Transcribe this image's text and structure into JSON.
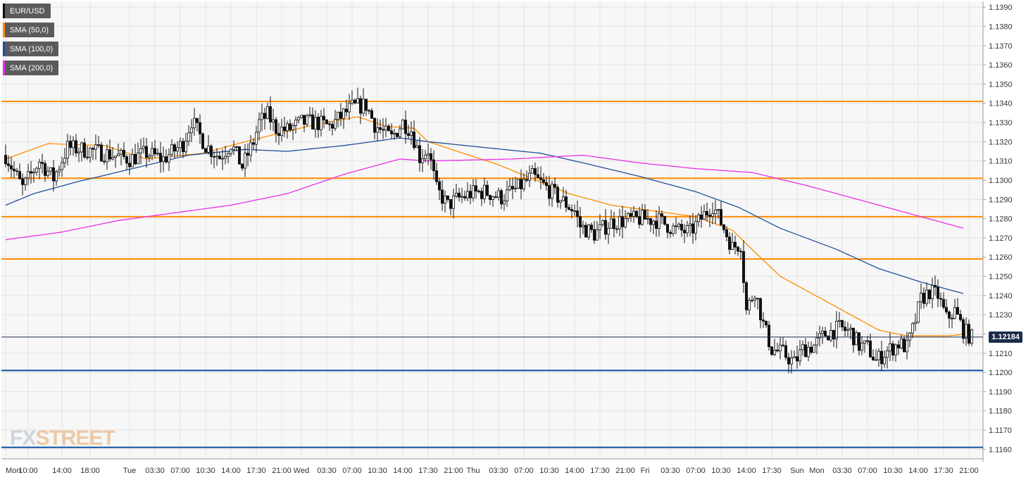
{
  "chart_data": {
    "type": "candlestick",
    "symbol": "EUR/USD",
    "ylim": [
      1.1155,
      1.1393
    ],
    "y_ticks": [
      "1.1390",
      "1.1380",
      "1.1370",
      "1.1360",
      "1.1350",
      "1.1340",
      "1.1330",
      "1.1320",
      "1.1310",
      "1.1300",
      "1.1290",
      "1.1280",
      "1.1270",
      "1.1260",
      "1.1250",
      "1.1240",
      "1.1230",
      "1.1220",
      "1.1210",
      "1.1200",
      "1.1190",
      "1.1180",
      "1.1170",
      "1.1160"
    ],
    "x_ticks": [
      "Mon",
      "10:00",
      "14:00",
      "18:00",
      "Tue",
      "03:30",
      "07:00",
      "10:30",
      "14:00",
      "17:30",
      "21:00",
      "Wed",
      "03:30",
      "07:00",
      "10:30",
      "14:00",
      "17:30",
      "21:00",
      "Thu",
      "03:30",
      "07:00",
      "10:30",
      "14:00",
      "17:30",
      "21:00",
      "Fri",
      "03:30",
      "07:00",
      "10:30",
      "14:00",
      "17:30",
      "Sun",
      "Mon",
      "03:30",
      "07:00",
      "10:30",
      "14:00",
      "17:30",
      "21:00"
    ],
    "x_tick_index": [
      0,
      8,
      20,
      30,
      44,
      53,
      62,
      71,
      80,
      89,
      98,
      105,
      114,
      123,
      132,
      141,
      150,
      159,
      166,
      175,
      184,
      193,
      202,
      211,
      220,
      227,
      236,
      245,
      254,
      263,
      272,
      281,
      288,
      297,
      306,
      315,
      324,
      333,
      342
    ],
    "last_price": "1.12184",
    "grid": true,
    "levels": [
      {
        "value": 1.1341,
        "color": "#ff8c00"
      },
      {
        "value": 1.1301,
        "color": "#ff8c00"
      },
      {
        "value": 1.1281,
        "color": "#ff8c00"
      },
      {
        "value": 1.1259,
        "color": "#ff8c00"
      },
      {
        "value": 1.1201,
        "color": "#0a4fa0"
      },
      {
        "value": 1.1161,
        "color": "#0a4fa0"
      }
    ],
    "series": [
      {
        "name": "SMA (50,0)",
        "color": "#ff8c00",
        "points": [
          [
            0,
            1.1311
          ],
          [
            15,
            1.1319
          ],
          [
            35,
            1.1318
          ],
          [
            50,
            1.1311
          ],
          [
            70,
            1.1314
          ],
          [
            85,
            1.132
          ],
          [
            110,
            1.1329
          ],
          [
            125,
            1.1333
          ],
          [
            135,
            1.1328
          ],
          [
            145,
            1.1327
          ],
          [
            150,
            1.132
          ],
          [
            175,
            1.1308
          ],
          [
            200,
            1.1293
          ],
          [
            215,
            1.1287
          ],
          [
            230,
            1.1284
          ],
          [
            245,
            1.1281
          ],
          [
            258,
            1.1274
          ],
          [
            265,
            1.1264
          ],
          [
            275,
            1.125
          ],
          [
            295,
            1.1234
          ],
          [
            310,
            1.1222
          ],
          [
            320,
            1.1219
          ],
          [
            335,
            1.1219
          ],
          [
            341,
            1.122
          ]
        ]
      },
      {
        "name": "SMA (100,0)",
        "color": "#1f4f9c",
        "points": [
          [
            0,
            1.1287
          ],
          [
            10,
            1.1293
          ],
          [
            25,
            1.1299
          ],
          [
            45,
            1.1306
          ],
          [
            65,
            1.1313
          ],
          [
            85,
            1.1316
          ],
          [
            100,
            1.1315
          ],
          [
            120,
            1.1318
          ],
          [
            140,
            1.1322
          ],
          [
            150,
            1.132
          ],
          [
            170,
            1.1317
          ],
          [
            190,
            1.1314
          ],
          [
            205,
            1.1309
          ],
          [
            225,
            1.1302
          ],
          [
            245,
            1.1294
          ],
          [
            260,
            1.1286
          ],
          [
            275,
            1.1275
          ],
          [
            295,
            1.1264
          ],
          [
            310,
            1.1254
          ],
          [
            325,
            1.1247
          ],
          [
            340,
            1.1241
          ]
        ]
      },
      {
        "name": "SMA (200,0)",
        "color": "#e830e8",
        "points": [
          [
            0,
            1.1269
          ],
          [
            20,
            1.1273
          ],
          [
            40,
            1.1279
          ],
          [
            60,
            1.1283
          ],
          [
            80,
            1.1287
          ],
          [
            100,
            1.1293
          ],
          [
            120,
            1.1303
          ],
          [
            140,
            1.1311
          ],
          [
            150,
            1.131
          ],
          [
            180,
            1.1311
          ],
          [
            205,
            1.1313
          ],
          [
            225,
            1.1309
          ],
          [
            245,
            1.1306
          ],
          [
            265,
            1.1304
          ],
          [
            285,
            1.1297
          ],
          [
            305,
            1.1289
          ],
          [
            325,
            1.1281
          ],
          [
            340,
            1.1275
          ]
        ]
      }
    ],
    "price_path": [
      [
        0,
        1.1313
      ],
      [
        6,
        1.1296
      ],
      [
        12,
        1.131
      ],
      [
        17,
        1.1301
      ],
      [
        22,
        1.1317
      ],
      [
        32,
        1.1315
      ],
      [
        44,
        1.1311
      ],
      [
        50,
        1.1314
      ],
      [
        56,
        1.1311
      ],
      [
        63,
        1.1319
      ],
      [
        66,
        1.1331
      ],
      [
        71,
        1.1318
      ],
      [
        76,
        1.1312
      ],
      [
        80,
        1.1319
      ],
      [
        84,
        1.1307
      ],
      [
        88,
        1.132
      ],
      [
        90,
        1.133
      ],
      [
        93,
        1.1334
      ],
      [
        96,
        1.1327
      ],
      [
        100,
        1.1326
      ],
      [
        105,
        1.133
      ],
      [
        110,
        1.133
      ],
      [
        115,
        1.1328
      ],
      [
        123,
        1.1338
      ],
      [
        128,
        1.1339
      ],
      [
        131,
        1.1329
      ],
      [
        134,
        1.1325
      ],
      [
        137,
        1.1322
      ],
      [
        141,
        1.133
      ],
      [
        144,
        1.1326
      ],
      [
        147,
        1.1312
      ],
      [
        150,
        1.1316
      ],
      [
        153,
        1.1295
      ],
      [
        157,
        1.1287
      ],
      [
        160,
        1.129
      ],
      [
        165,
        1.1293
      ],
      [
        170,
        1.1294
      ],
      [
        176,
        1.1291
      ],
      [
        182,
        1.1296
      ],
      [
        187,
        1.1302
      ],
      [
        192,
        1.1296
      ],
      [
        197,
        1.129
      ],
      [
        202,
        1.1284
      ],
      [
        204,
        1.1276
      ],
      [
        209,
        1.1272
      ],
      [
        215,
        1.1278
      ],
      [
        220,
        1.1279
      ],
      [
        226,
        1.128
      ],
      [
        232,
        1.1279
      ],
      [
        238,
        1.1274
      ],
      [
        243,
        1.1273
      ],
      [
        248,
        1.1282
      ],
      [
        251,
        1.1287
      ],
      [
        255,
        1.1275
      ],
      [
        258,
        1.1265
      ],
      [
        261,
        1.1267
      ],
      [
        263,
        1.1232
      ],
      [
        266,
        1.1243
      ],
      [
        269,
        1.1225
      ],
      [
        272,
        1.1212
      ],
      [
        276,
        1.121
      ],
      [
        280,
        1.1205
      ],
      [
        283,
        1.1212
      ],
      [
        287,
        1.1214
      ],
      [
        291,
        1.122
      ],
      [
        296,
        1.1223
      ],
      [
        300,
        1.1221
      ],
      [
        303,
        1.1214
      ],
      [
        306,
        1.1213
      ],
      [
        309,
        1.1206
      ],
      [
        312,
        1.121
      ],
      [
        317,
        1.1215
      ],
      [
        320,
        1.1213
      ],
      [
        322,
        1.1222
      ],
      [
        325,
        1.1238
      ],
      [
        328,
        1.1242
      ],
      [
        331,
        1.124
      ],
      [
        334,
        1.1228
      ],
      [
        337,
        1.1232
      ],
      [
        340,
        1.1222
      ],
      [
        343,
        1.1218
      ]
    ]
  },
  "legend": {
    "items": [
      {
        "label": "EUR/USD",
        "color": "#111111"
      },
      {
        "label": "SMA (50,0)",
        "color": "#ff8c00"
      },
      {
        "label": "SMA (100,0)",
        "color": "#1f4f9c"
      },
      {
        "label": "SMA (200,0)",
        "color": "#e830e8"
      }
    ]
  },
  "logo": {
    "part1": "FX",
    "part2": "STREET"
  }
}
